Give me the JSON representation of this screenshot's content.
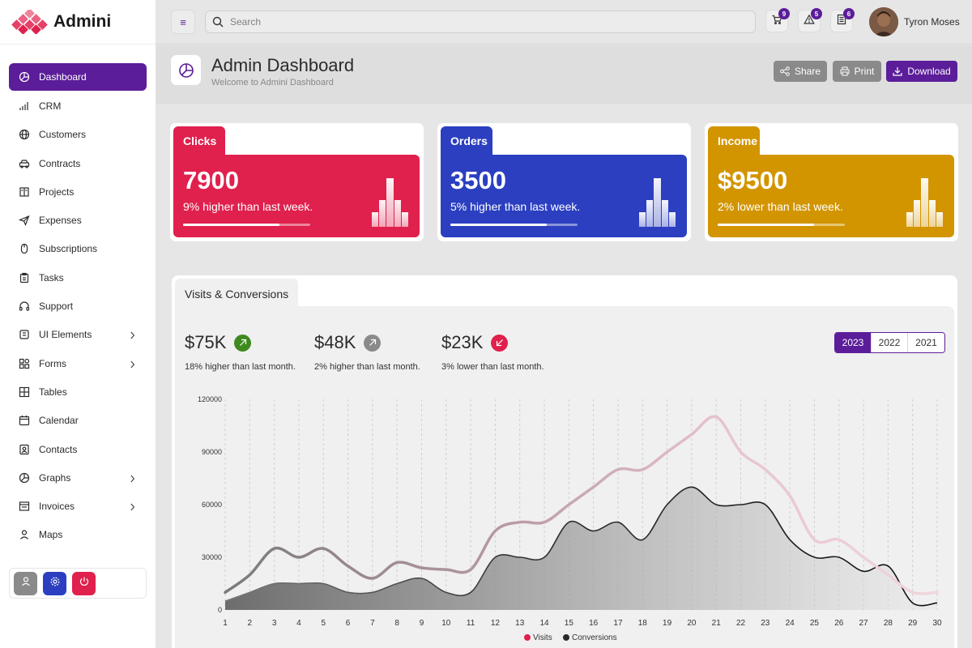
{
  "app": {
    "name": "Admini"
  },
  "sidebar": {
    "items": [
      {
        "label": "Dashboard",
        "icon": "pie-chart-icon",
        "active": true
      },
      {
        "label": "CRM",
        "icon": "bar-chart-icon"
      },
      {
        "label": "Customers",
        "icon": "globe-icon"
      },
      {
        "label": "Contracts",
        "icon": "car-icon"
      },
      {
        "label": "Projects",
        "icon": "book-icon"
      },
      {
        "label": "Expenses",
        "icon": "send-icon"
      },
      {
        "label": "Subscriptions",
        "icon": "mouse-icon"
      },
      {
        "label": "Tasks",
        "icon": "clipboard-icon"
      },
      {
        "label": "Support",
        "icon": "headphones-icon"
      },
      {
        "label": "UI Elements",
        "icon": "box-icon",
        "chevron": true
      },
      {
        "label": "Forms",
        "icon": "grid-icon",
        "chevron": true
      },
      {
        "label": "Tables",
        "icon": "table-icon"
      },
      {
        "label": "Calendar",
        "icon": "calendar-icon"
      },
      {
        "label": "Contacts",
        "icon": "contacts-icon"
      },
      {
        "label": "Graphs",
        "icon": "pie-chart-icon",
        "chevron": true
      },
      {
        "label": "Invoices",
        "icon": "invoice-icon",
        "chevron": true
      },
      {
        "label": "Maps",
        "icon": "map-pin-icon"
      }
    ],
    "bottom_buttons": [
      {
        "icon": "user-icon",
        "color": "#8a8a8a"
      },
      {
        "icon": "gear-icon",
        "color": "#2b3fc0"
      },
      {
        "icon": "power-icon",
        "color": "#e0204d"
      }
    ]
  },
  "topbar": {
    "search_placeholder": "Search",
    "icons": [
      {
        "icon": "cart-icon",
        "badge": "9"
      },
      {
        "icon": "alert-icon",
        "badge": "5"
      },
      {
        "icon": "document-icon",
        "badge": "6"
      }
    ],
    "user_name": "Tyron Moses"
  },
  "header": {
    "title": "Admin Dashboard",
    "subtitle": "Welcome to Admini Dashboard",
    "share_label": "Share",
    "print_label": "Print",
    "download_label": "Download"
  },
  "kpis": [
    {
      "label": "Clicks",
      "value": "7900",
      "note": "9% higher than last week.",
      "progress": 0.76,
      "color": "#e0204d",
      "bars": [
        0.3,
        0.55,
        1.0,
        0.55,
        0.3
      ]
    },
    {
      "label": "Orders",
      "value": "3500",
      "note": "5% higher than last week.",
      "progress": 0.76,
      "color": "#2b3fc0",
      "bars": [
        0.3,
        0.55,
        1.0,
        0.55,
        0.3
      ]
    },
    {
      "label": "Income",
      "value": "$9500",
      "note": "2% lower than last week.",
      "progress": 0.76,
      "color": "#d29500",
      "bars": [
        0.3,
        0.55,
        1.0,
        0.55,
        0.3
      ]
    }
  ],
  "chart_section": {
    "title": "Visits & Conversions",
    "stats": [
      {
        "value": "$75K",
        "note": "18% higher than last month.",
        "direction": "up",
        "color": "#3f8a1e"
      },
      {
        "value": "$48K",
        "note": "2% higher than last month.",
        "direction": "up",
        "color": "#8a8a8a"
      },
      {
        "value": "$23K",
        "note": "3% lower than last month.",
        "direction": "down",
        "color": "#e0204d"
      }
    ],
    "years": [
      "2023",
      "2022",
      "2021"
    ],
    "active_year": "2023"
  },
  "chart_data": {
    "type": "area",
    "x": [
      1,
      2,
      3,
      4,
      5,
      6,
      7,
      8,
      9,
      10,
      11,
      12,
      13,
      14,
      15,
      16,
      17,
      18,
      19,
      20,
      21,
      22,
      23,
      24,
      25,
      26,
      27,
      28,
      29,
      30
    ],
    "ylim": [
      0,
      120000
    ],
    "yticks": [
      "120000",
      "90000",
      "60000",
      "30000",
      "0"
    ],
    "series": [
      {
        "name": "Visits",
        "color": "#e0204d",
        "values": [
          10000,
          20000,
          35000,
          30000,
          35000,
          25000,
          18000,
          27000,
          24000,
          23000,
          23000,
          45000,
          50000,
          50000,
          60000,
          70000,
          80000,
          80000,
          90000,
          100000,
          110000,
          90000,
          80000,
          65000,
          40000,
          40000,
          30000,
          20000,
          10000,
          10000
        ]
      },
      {
        "name": "Conversions",
        "color": "#2b2b2b",
        "values": [
          5000,
          10000,
          15000,
          15000,
          15000,
          10000,
          10000,
          15000,
          18000,
          10000,
          10000,
          30000,
          30000,
          30000,
          50000,
          45000,
          50000,
          40000,
          60000,
          70000,
          60000,
          60000,
          60000,
          40000,
          30000,
          30000,
          22000,
          25000,
          4000,
          4000
        ]
      }
    ]
  }
}
